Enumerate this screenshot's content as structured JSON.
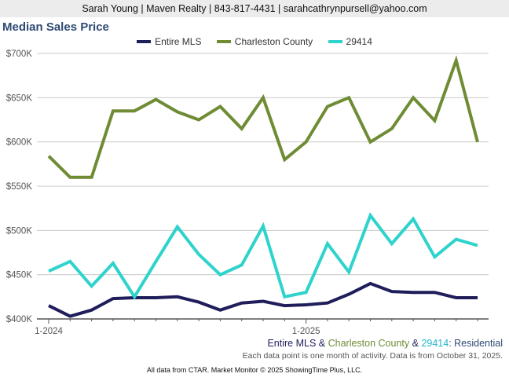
{
  "header": {
    "contact": "Sarah Young | Maven Realty | 843-817-4431 | sarahcathrynpursell@yahoo.com"
  },
  "chart_data": {
    "type": "line",
    "title": "Median Sales Price",
    "x": [
      "1-2024",
      "2-2024",
      "3-2024",
      "4-2024",
      "5-2024",
      "6-2024",
      "7-2024",
      "8-2024",
      "9-2024",
      "10-2024",
      "11-2024",
      "12-2024",
      "1-2025",
      "2-2025",
      "3-2025",
      "4-2025",
      "5-2025",
      "6-2025",
      "7-2025",
      "8-2025",
      "9-2025"
    ],
    "x_tick_labels": [
      "1-2024",
      "1-2025"
    ],
    "y_tick_labels": [
      "$400K",
      "$450K",
      "$500K",
      "$550K",
      "$600K",
      "$650K",
      "$700K"
    ],
    "ylim": [
      400000,
      700000
    ],
    "y_ticks": [
      400000,
      450000,
      500000,
      550000,
      600000,
      650000,
      700000
    ],
    "grid": true,
    "legend_position": "top",
    "series": [
      {
        "name": "Entire MLS",
        "color": "#1f1d5a",
        "values": [
          415000,
          403000,
          410000,
          423000,
          424000,
          424000,
          425000,
          419000,
          410000,
          418000,
          420000,
          415000,
          416000,
          418000,
          428000,
          440000,
          431000,
          430000,
          430000,
          424000,
          424000
        ]
      },
      {
        "name": "Charleston County",
        "color": "#6f8c35",
        "values": [
          584000,
          560000,
          560000,
          635000,
          635000,
          648000,
          634000,
          625000,
          640000,
          615000,
          650000,
          580000,
          600000,
          640000,
          650000,
          600000,
          615000,
          650000,
          624000,
          692000,
          600000
        ]
      },
      {
        "name": "29414",
        "color": "#2ed3cc",
        "values": [
          454000,
          465000,
          437000,
          463000,
          425000,
          465000,
          504000,
          473000,
          450000,
          461000,
          505000,
          425000,
          430000,
          485000,
          453000,
          517000,
          485000,
          513000,
          470000,
          490000,
          483000
        ]
      }
    ]
  },
  "footer": {
    "legend_mls": "Entire MLS",
    "legend_amp1": " & ",
    "legend_county": "Charleston County",
    "legend_amp2": " & ",
    "legend_zip": "29414",
    "legend_suffix": ": Residential",
    "note": "Each data point is one month of activity. Data is from October 31, 2025.",
    "credit": "All data from CTAR. Market Monitor © 2025 ShowingTime Plus, LLC."
  }
}
